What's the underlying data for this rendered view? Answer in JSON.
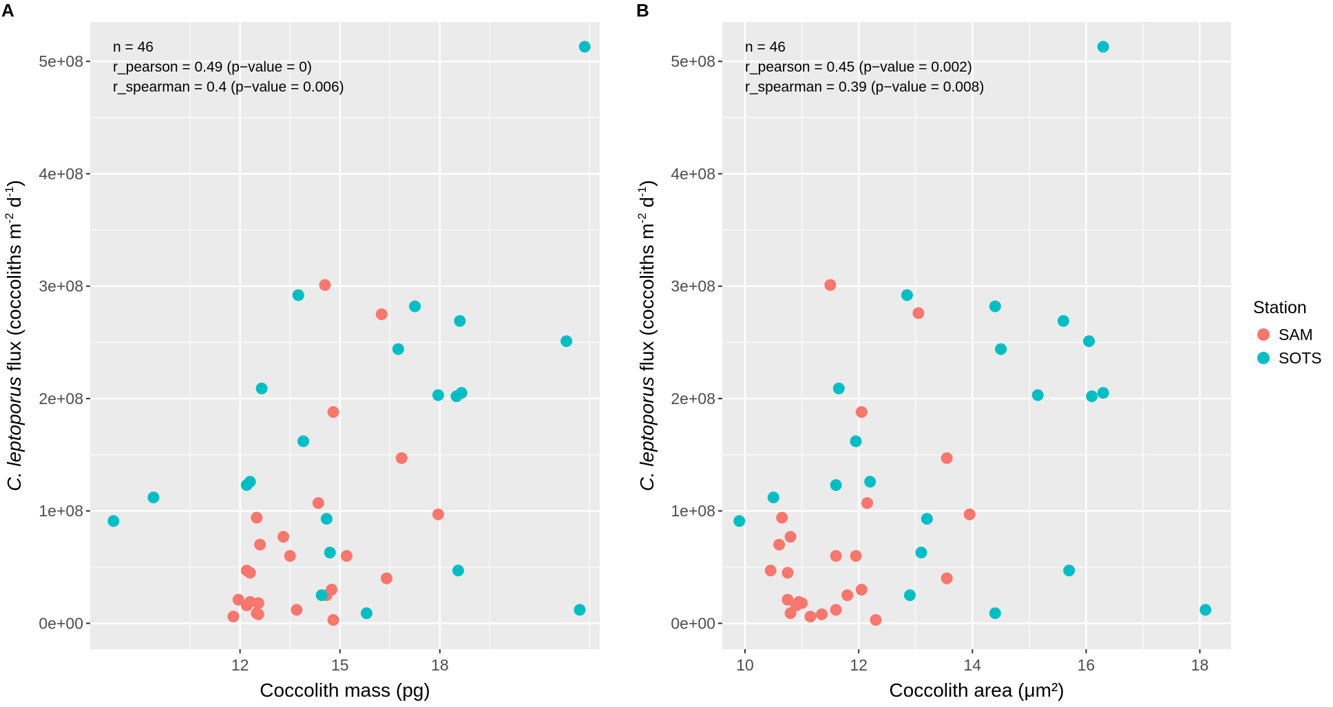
{
  "chart_data": [
    {
      "panel": "A",
      "type": "scatter",
      "xlabel": "Coccolith mass (pg)",
      "ylabel_prefix": "C. leptoporus",
      "ylabel_rest": " flux (coccoliths m",
      "xlim": [
        7.5,
        22.8
      ],
      "ylim": [
        -23000000.0,
        535000000.0
      ],
      "xticks": [
        12,
        15,
        18
      ],
      "xticklabels": [
        "12",
        "15",
        "18"
      ],
      "yticks": [
        0,
        100000000,
        200000000,
        300000000,
        400000000,
        500000000
      ],
      "yticklabels": [
        "0e+00",
        "1e+08",
        "2e+08",
        "3e+08",
        "4e+08",
        "5e+08"
      ],
      "stats": [
        "n = 46",
        "r_pearson = 0.49 (p−value = 0)",
        "r_spearman = 0.4 (p−value = 0.006)"
      ],
      "series": [
        {
          "name": "SAM",
          "color": "#F8766D",
          "points": [
            [
              14.55,
              301000000.0
            ],
            [
              16.25,
              275000000.0
            ],
            [
              14.8,
              188000000.0
            ],
            [
              16.85,
              147000000.0
            ],
            [
              14.35,
              107000000.0
            ],
            [
              17.95,
              97000000.0
            ],
            [
              12.5,
              94000000.0
            ],
            [
              13.3,
              77000000.0
            ],
            [
              12.6,
              70000000.0
            ],
            [
              13.5,
              60000000.0
            ],
            [
              15.2,
              60000000.0
            ],
            [
              12.2,
              47000000.0
            ],
            [
              12.3,
              45000000.0
            ],
            [
              16.4,
              40000000.0
            ],
            [
              14.75,
              30000000.0
            ],
            [
              14.6,
              25000000.0
            ],
            [
              11.95,
              21000000.0
            ],
            [
              12.3,
              19000000.0
            ],
            [
              12.55,
              18000000.0
            ],
            [
              12.2,
              16000000.0
            ],
            [
              13.7,
              12000000.0
            ],
            [
              12.5,
              9000000.0
            ],
            [
              12.55,
              8000000.0
            ],
            [
              11.8,
              6000000.0
            ],
            [
              14.8,
              3000000.0
            ]
          ]
        },
        {
          "name": "SOTS",
          "color": "#00BFC4",
          "points": [
            [
              22.35,
              513000000.0
            ],
            [
              13.75,
              292000000.0
            ],
            [
              17.25,
              282000000.0
            ],
            [
              18.6,
              269000000.0
            ],
            [
              21.8,
              251000000.0
            ],
            [
              16.75,
              244000000.0
            ],
            [
              12.65,
              209000000.0
            ],
            [
              18.65,
              205000000.0
            ],
            [
              17.95,
              203000000.0
            ],
            [
              18.5,
              202000000.0
            ],
            [
              13.9,
              162000000.0
            ],
            [
              12.3,
              126000000.0
            ],
            [
              12.2,
              123000000.0
            ],
            [
              9.4,
              112000000.0
            ],
            [
              14.6,
              93000000.0
            ],
            [
              8.2,
              91000000.0
            ],
            [
              14.7,
              63000000.0
            ],
            [
              18.55,
              47000000.0
            ],
            [
              14.45,
              25000000.0
            ],
            [
              15.8,
              9000000.0
            ],
            [
              22.2,
              12000000.0
            ]
          ]
        }
      ]
    },
    {
      "panel": "B",
      "type": "scatter",
      "xlabel": "Coccolith area (μm²)",
      "ylabel_prefix": "C. leptoporus",
      "ylabel_rest": " flux (coccoliths m",
      "xlim": [
        9.6,
        18.55
      ],
      "ylim": [
        -23000000.0,
        535000000.0
      ],
      "xticks": [
        10,
        12,
        14,
        16,
        18
      ],
      "xticklabels": [
        "10",
        "12",
        "14",
        "16",
        "18"
      ],
      "yticks": [
        0,
        100000000,
        200000000,
        300000000,
        400000000,
        500000000
      ],
      "yticklabels": [
        "0e+00",
        "1e+08",
        "2e+08",
        "3e+08",
        "4e+08",
        "5e+08"
      ],
      "stats": [
        "n = 46",
        "r_pearson = 0.45 (p−value = 0.002)",
        "r_spearman = 0.39 (p−value = 0.008)"
      ],
      "series": [
        {
          "name": "SAM",
          "color": "#F8766D",
          "points": [
            [
              11.5,
              301000000.0
            ],
            [
              13.05,
              276000000.0
            ],
            [
              12.05,
              188000000.0
            ],
            [
              13.55,
              147000000.0
            ],
            [
              12.15,
              107000000.0
            ],
            [
              13.95,
              97000000.0
            ],
            [
              10.65,
              94000000.0
            ],
            [
              10.8,
              77000000.0
            ],
            [
              10.6,
              70000000.0
            ],
            [
              11.6,
              60000000.0
            ],
            [
              11.95,
              60000000.0
            ],
            [
              10.45,
              47000000.0
            ],
            [
              10.75,
              45000000.0
            ],
            [
              13.55,
              40000000.0
            ],
            [
              12.05,
              30000000.0
            ],
            [
              11.8,
              25000000.0
            ],
            [
              10.75,
              21000000.0
            ],
            [
              10.95,
              19000000.0
            ],
            [
              11.0,
              18000000.0
            ],
            [
              10.9,
              16000000.0
            ],
            [
              11.6,
              12000000.0
            ],
            [
              10.8,
              9000000.0
            ],
            [
              11.35,
              8000000.0
            ],
            [
              11.15,
              6000000.0
            ],
            [
              12.3,
              3000000.0
            ]
          ]
        },
        {
          "name": "SOTS",
          "color": "#00BFC4",
          "points": [
            [
              16.3,
              513000000.0
            ],
            [
              12.85,
              292000000.0
            ],
            [
              14.4,
              282000000.0
            ],
            [
              15.6,
              269000000.0
            ],
            [
              16.05,
              251000000.0
            ],
            [
              14.5,
              244000000.0
            ],
            [
              11.65,
              209000000.0
            ],
            [
              16.3,
              205000000.0
            ],
            [
              15.15,
              203000000.0
            ],
            [
              16.1,
              202000000.0
            ],
            [
              11.95,
              162000000.0
            ],
            [
              12.2,
              126000000.0
            ],
            [
              11.6,
              123000000.0
            ],
            [
              10.5,
              112000000.0
            ],
            [
              13.2,
              93000000.0
            ],
            [
              9.9,
              91000000.0
            ],
            [
              13.1,
              63000000.0
            ],
            [
              15.7,
              47000000.0
            ],
            [
              12.9,
              25000000.0
            ],
            [
              14.4,
              9000000.0
            ],
            [
              18.1,
              12000000.0
            ]
          ]
        }
      ]
    }
  ],
  "legend": {
    "title": "Station",
    "items": [
      {
        "label": "SAM",
        "color": "#F8766D"
      },
      {
        "label": "SOTS",
        "color": "#00BFC4"
      }
    ]
  },
  "ylabel_superscript_1": "-2",
  "ylabel_mid": " d",
  "ylabel_superscript_2": "-1",
  "ylabel_end": ")"
}
